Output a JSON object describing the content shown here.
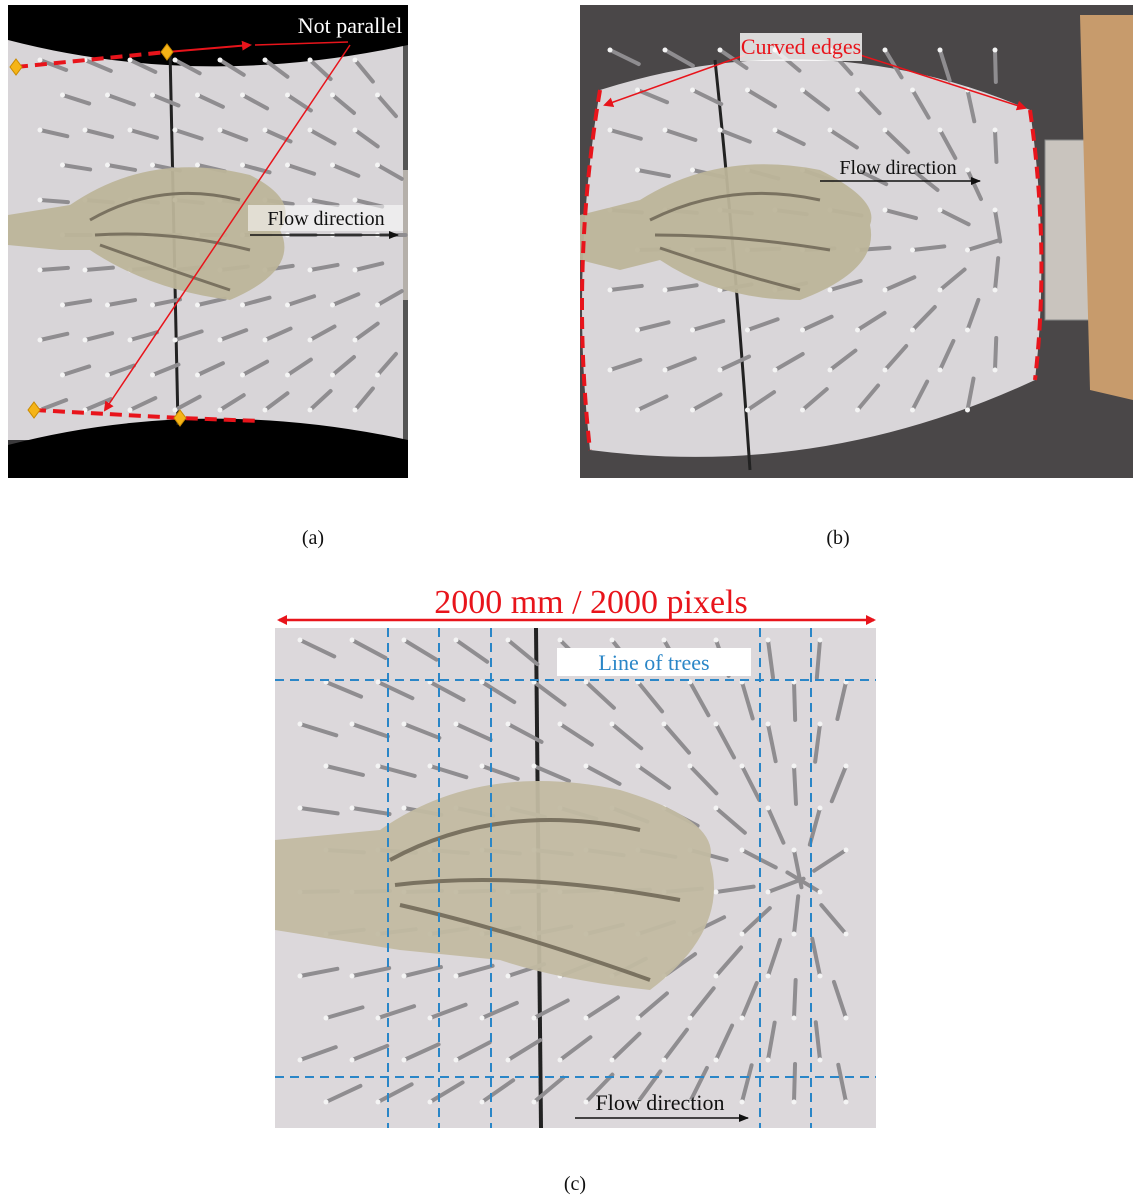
{
  "panels": [
    {
      "label": "(a)",
      "annotation": "Not parallel",
      "flow_label": "Flow direction"
    },
    {
      "label": "(b)",
      "annotation": "Curved edges",
      "flow_label": "Flow direction"
    },
    {
      "label": "(c)",
      "scale_label": "2000 mm / 2000 pixels",
      "grid_label": "Line of trees",
      "flow_label": "Flow direction"
    }
  ]
}
